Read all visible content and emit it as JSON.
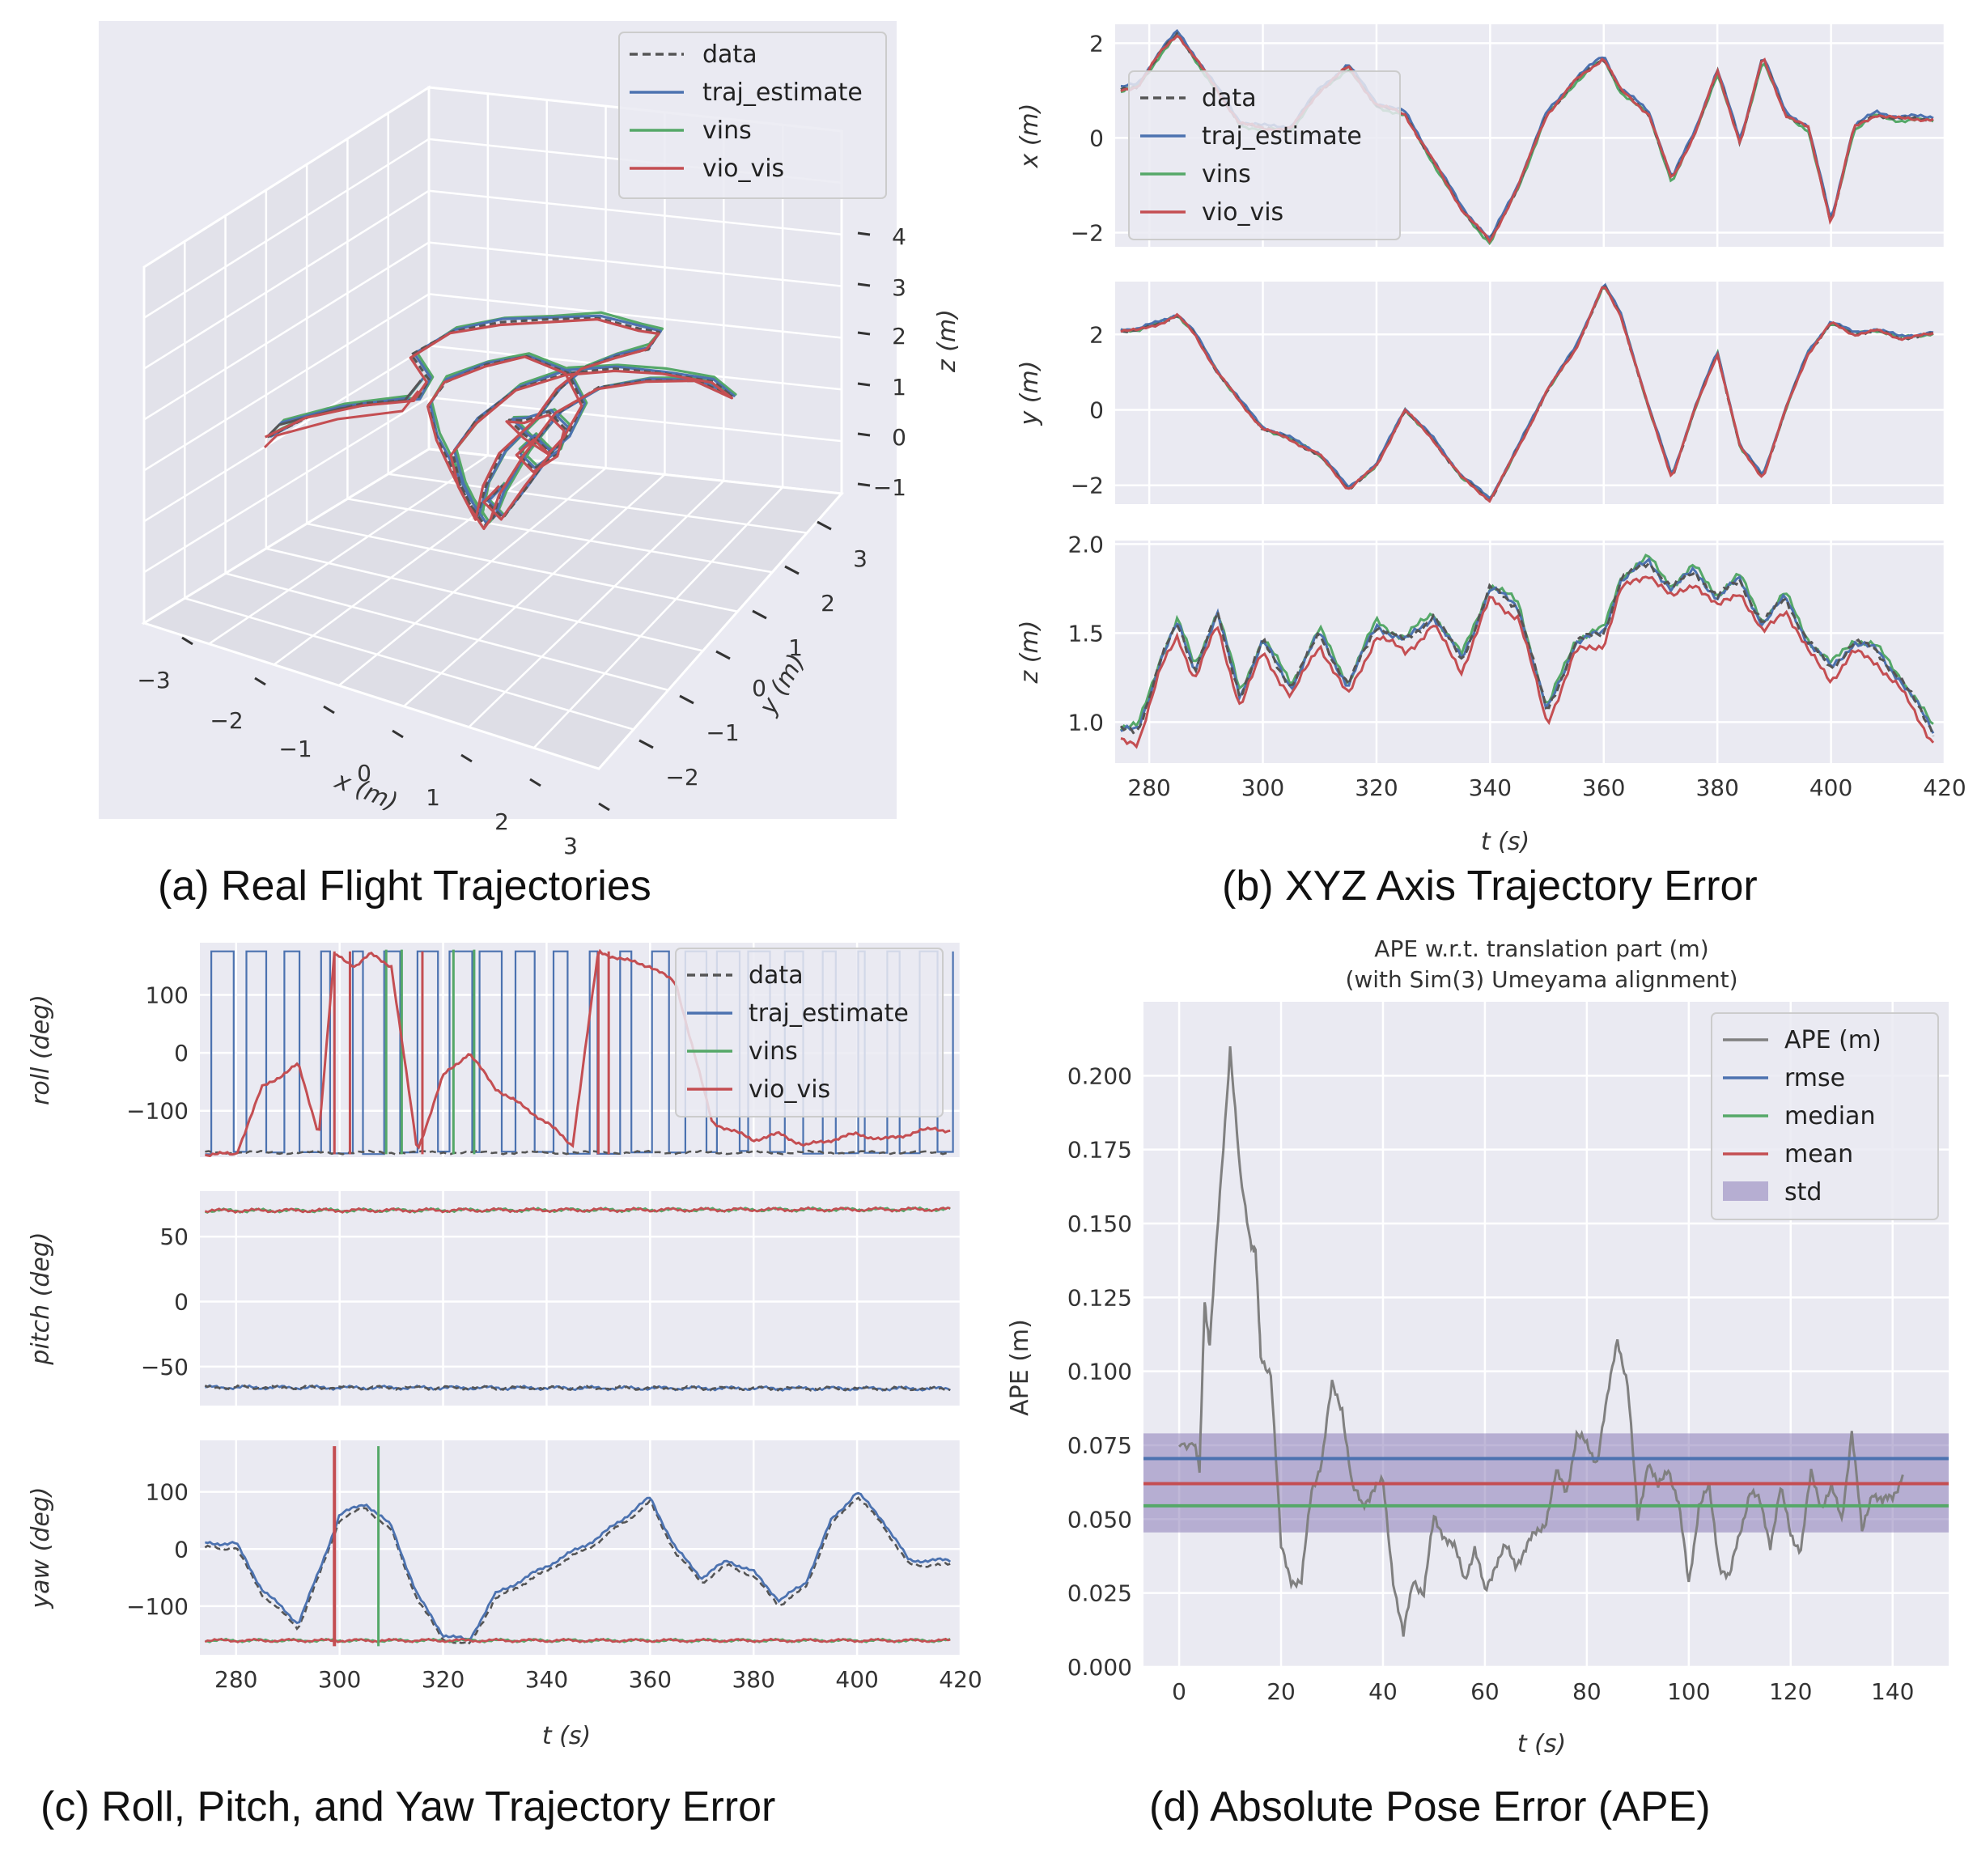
{
  "panels": {
    "a": {
      "caption": "(a) Real Flight Trajectories",
      "x_label": "x (m)",
      "y_label": "y (m)",
      "z_label": "z (m)",
      "x_ticks": [
        "−3",
        "−2",
        "−1",
        "0",
        "1",
        "2",
        "3"
      ],
      "y_ticks": [
        "−2",
        "−1",
        "0",
        "1",
        "2",
        "3"
      ],
      "z_ticks": [
        "4",
        "3",
        "2",
        "1",
        "0",
        "−1"
      ],
      "legend": [
        "data",
        "traj_estimate",
        "vins",
        "vio_vis"
      ]
    },
    "b": {
      "caption": "(b) XYZ Axis Trajectory Error",
      "x_label": "t (s)",
      "x_ticks": [
        "280",
        "300",
        "320",
        "340",
        "360",
        "380",
        "400",
        "420"
      ],
      "sub1_ylabel": "x (m)",
      "sub1_yticks": [
        "2",
        "0",
        "−2"
      ],
      "sub2_ylabel": "y (m)",
      "sub2_yticks": [
        "2",
        "0",
        "−2"
      ],
      "sub3_ylabel": "z (m)",
      "sub3_yticks": [
        "2.0",
        "1.5",
        "1.0"
      ],
      "legend": [
        "data",
        "traj_estimate",
        "vins",
        "vio_vis"
      ]
    },
    "c": {
      "caption": "(c) Roll, Pitch, and Yaw Trajectory Error",
      "x_label": "t (s)",
      "x_ticks": [
        "280",
        "300",
        "320",
        "340",
        "360",
        "380",
        "400",
        "420"
      ],
      "sub1_ylabel": "roll (deg)",
      "sub1_yticks": [
        "100",
        "0",
        "−100"
      ],
      "sub2_ylabel": "pitch (deg)",
      "sub2_yticks": [
        "50",
        "0",
        "−50"
      ],
      "sub3_ylabel": "yaw (deg)",
      "sub3_yticks": [
        "100",
        "0",
        "−100"
      ],
      "legend": [
        "data",
        "traj_estimate",
        "vins",
        "vio_vis"
      ]
    },
    "d": {
      "caption": "(d) Absolute Pose Error (APE)",
      "title_line1": "APE w.r.t. translation part (m)",
      "title_line2": "(with Sim(3) Umeyama alignment)",
      "x_label": "t (s)",
      "y_label": "APE (m)",
      "x_ticks": [
        "0",
        "20",
        "40",
        "60",
        "80",
        "100",
        "120",
        "140"
      ],
      "y_ticks": [
        "0.200",
        "0.175",
        "0.150",
        "0.125",
        "0.100",
        "0.075",
        "0.050",
        "0.025",
        "0.000"
      ],
      "legend": [
        "APE (m)",
        "rmse",
        "median",
        "mean",
        "std"
      ]
    }
  },
  "colors": {
    "plot_bg": "#EAEAF2",
    "grid": "#ffffff",
    "data": "#555555",
    "traj_estimate": "#4C72B0",
    "vins": "#55A868",
    "vio_vis": "#C44E52",
    "ape": "#808080",
    "std_band": "#8172B2"
  },
  "chart_data": [
    {
      "type": "line",
      "title": "(a) Real Flight Trajectories",
      "kind": "3d-trajectory",
      "xlabel": "x (m)",
      "ylabel": "y (m)",
      "zlabel": "z (m)",
      "xlim": [
        -3,
        3
      ],
      "ylim": [
        -2,
        3
      ],
      "zlim": [
        -1,
        4
      ],
      "series": [
        {
          "name": "data"
        },
        {
          "name": "traj_estimate"
        },
        {
          "name": "vins"
        },
        {
          "name": "vio_vis"
        }
      ],
      "legend_position": "upper-right"
    },
    {
      "type": "line",
      "title": "(b) XYZ Axis Trajectory Error",
      "xlabel": "t (s)",
      "xlim": [
        274,
        420
      ],
      "x": [
        275,
        278,
        282,
        285,
        288,
        292,
        296,
        300,
        305,
        310,
        315,
        320,
        325,
        330,
        335,
        340,
        345,
        350,
        355,
        360,
        363,
        368,
        372,
        376,
        380,
        384,
        388,
        392,
        396,
        400,
        404,
        408,
        412,
        418
      ],
      "subplots": [
        {
          "ylabel": "x (m)",
          "ylim": [
            -2.3,
            2.4
          ],
          "values": [
            1.0,
            1.1,
            1.8,
            2.2,
            1.7,
            1.0,
            0.3,
            0.2,
            0.2,
            1.0,
            1.5,
            0.7,
            0.5,
            -0.5,
            -1.5,
            -2.2,
            -1.0,
            0.5,
            1.2,
            1.7,
            1.0,
            0.5,
            -0.9,
            0.1,
            1.4,
            -0.1,
            1.7,
            0.5,
            0.2,
            -1.8,
            0.2,
            0.5,
            0.4,
            0.4
          ],
          "series_offset": {
            "data": 0.0,
            "traj_estimate": 0.05,
            "vins": -0.03,
            "vio_vis": 0.0
          }
        },
        {
          "ylabel": "y (m)",
          "ylim": [
            -2.5,
            3.4
          ],
          "values": [
            2.1,
            2.1,
            2.3,
            2.5,
            2.0,
            1.0,
            0.2,
            -0.5,
            -0.8,
            -1.2,
            -2.1,
            -1.5,
            0.0,
            -0.8,
            -1.8,
            -2.4,
            -1.0,
            0.5,
            1.6,
            3.3,
            2.5,
            0.0,
            -1.8,
            0.0,
            1.5,
            -1.0,
            -1.8,
            0.0,
            1.5,
            2.3,
            2.0,
            2.1,
            1.9,
            2.0
          ],
          "series_offset": {
            "data": 0.0,
            "traj_estimate": 0.05,
            "vins": 0.02,
            "vio_vis": 0.0
          }
        },
        {
          "ylabel": "z (m)",
          "ylim": [
            0.77,
            2.02
          ],
          "values": [
            0.95,
            0.95,
            1.35,
            1.55,
            1.3,
            1.6,
            1.15,
            1.45,
            1.2,
            1.5,
            1.2,
            1.55,
            1.45,
            1.6,
            1.35,
            1.75,
            1.65,
            1.05,
            1.45,
            1.5,
            1.8,
            1.9,
            1.75,
            1.85,
            1.7,
            1.8,
            1.55,
            1.7,
            1.45,
            1.3,
            1.45,
            1.4,
            1.25,
            0.95
          ],
          "series_offset": {
            "data": 0.0,
            "traj_estimate": 0.0,
            "vins": 0.02,
            "vio_vis": -0.06
          }
        }
      ],
      "series": [
        {
          "name": "data"
        },
        {
          "name": "traj_estimate"
        },
        {
          "name": "vins"
        },
        {
          "name": "vio_vis"
        }
      ],
      "legend_position": "upper-left (x subplot)"
    },
    {
      "type": "line",
      "title": "(c) Roll, Pitch, and Yaw Trajectory Error",
      "xlabel": "t (s)",
      "xlim": [
        273,
        420
      ],
      "subplots": [
        {
          "ylabel": "roll (deg)",
          "ylim": [
            -180,
            190
          ],
          "x": [
            274,
            280,
            285,
            292,
            296,
            299,
            303,
            306,
            310,
            315,
            320,
            325,
            330,
            335,
            340,
            345,
            350,
            355,
            360,
            365,
            372,
            380,
            385,
            390,
            395,
            400,
            405,
            410,
            415,
            418
          ],
          "vio_vis": [
            -175,
            -175,
            -60,
            -20,
            -140,
            170,
            150,
            170,
            150,
            -170,
            -40,
            0,
            -60,
            -90,
            -120,
            -160,
            175,
            160,
            150,
            120,
            -120,
            -150,
            -140,
            -160,
            -150,
            -140,
            -150,
            -140,
            -130,
            -135
          ],
          "traj_estimate": "wraps between +180 and -180 (many vertical transitions)",
          "pitch_free_flat": -175
        },
        {
          "ylabel": "pitch (deg)",
          "ylim": [
            -80,
            85
          ],
          "x": [
            274,
            418
          ],
          "vio_vis": [
            70,
            71
          ],
          "vins": [
            70,
            71
          ],
          "traj_estimate": [
            -66,
            -67
          ],
          "data": [
            -66,
            -67
          ]
        },
        {
          "ylabel": "yaw (deg)",
          "ylim": [
            -185,
            190
          ],
          "x": [
            274,
            280,
            285,
            292,
            296,
            300,
            305,
            310,
            315,
            320,
            325,
            330,
            340,
            350,
            360,
            365,
            370,
            375,
            380,
            385,
            390,
            395,
            400,
            405,
            410,
            418
          ],
          "traj_estimate": [
            10,
            10,
            -70,
            -130,
            -40,
            60,
            80,
            40,
            -80,
            -150,
            -160,
            -80,
            -30,
            20,
            90,
            0,
            -50,
            -20,
            -40,
            -90,
            -60,
            50,
            100,
            50,
            -20,
            -20
          ],
          "data_offset": -8,
          "vio_vis": [
            -160,
            -160
          ],
          "vins": [
            -160,
            -160
          ]
        }
      ],
      "series": [
        {
          "name": "data"
        },
        {
          "name": "traj_estimate"
        },
        {
          "name": "vins"
        },
        {
          "name": "vio_vis"
        }
      ],
      "legend_position": "upper-right (roll subplot)"
    },
    {
      "type": "line",
      "title": "APE w.r.t. translation part (m) (with Sim(3) Umeyama alignment)",
      "xlabel": "t (s)",
      "ylabel": "APE (m)",
      "xlim": [
        -7,
        151
      ],
      "ylim": [
        0,
        0.225
      ],
      "x": [
        0,
        3,
        4,
        5,
        6,
        8,
        10,
        12,
        14,
        15,
        16,
        18,
        20,
        22,
        24,
        26,
        28,
        30,
        32,
        34,
        36,
        38,
        40,
        42,
        44,
        46,
        48,
        50,
        52,
        54,
        56,
        58,
        60,
        62,
        64,
        66,
        68,
        70,
        72,
        74,
        76,
        78,
        80,
        82,
        84,
        86,
        88,
        90,
        92,
        94,
        96,
        98,
        100,
        102,
        104,
        106,
        108,
        110,
        112,
        114,
        116,
        118,
        120,
        122,
        124,
        126,
        128,
        130,
        132,
        134,
        136,
        138,
        140,
        142
      ],
      "series": [
        {
          "name": "APE (m)",
          "values": [
            0.075,
            0.077,
            0.065,
            0.125,
            0.108,
            0.16,
            0.21,
            0.165,
            0.145,
            0.14,
            0.105,
            0.1,
            0.04,
            0.03,
            0.028,
            0.06,
            0.07,
            0.095,
            0.088,
            0.06,
            0.055,
            0.06,
            0.062,
            0.03,
            0.01,
            0.03,
            0.025,
            0.05,
            0.045,
            0.04,
            0.03,
            0.04,
            0.025,
            0.035,
            0.04,
            0.035,
            0.04,
            0.045,
            0.05,
            0.065,
            0.06,
            0.078,
            0.075,
            0.07,
            0.09,
            0.112,
            0.095,
            0.05,
            0.07,
            0.06,
            0.068,
            0.055,
            0.028,
            0.055,
            0.06,
            0.035,
            0.03,
            0.045,
            0.06,
            0.055,
            0.042,
            0.06,
            0.045,
            0.04,
            0.065,
            0.055,
            0.06,
            0.05,
            0.08,
            0.045,
            0.06,
            0.055,
            0.058,
            0.065
          ]
        },
        {
          "name": "rmse",
          "value": 0.0705
        },
        {
          "name": "median",
          "value": 0.0545
        },
        {
          "name": "mean",
          "value": 0.062
        },
        {
          "name": "std",
          "range": [
            0.0455,
            0.079
          ]
        }
      ],
      "legend_position": "upper-right"
    }
  ]
}
